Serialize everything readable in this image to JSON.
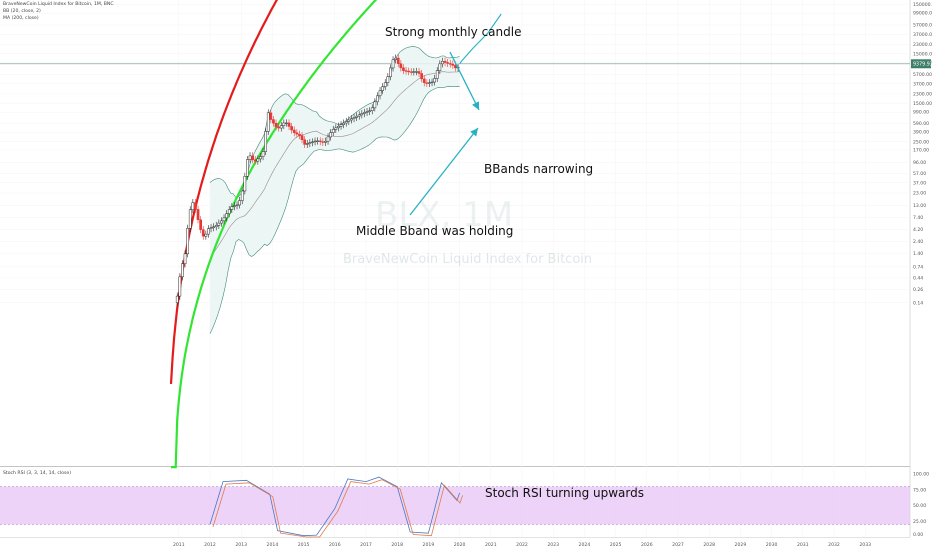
{
  "chart_title": "BraveNewCoin Liquid Index for Bitcoin, 1M, BNC",
  "indicators": {
    "bb": "BB (20, close, 2)",
    "ma": "MA (200, close)",
    "stoch": "Stoch RSI (3, 3, 14, 14, close)"
  },
  "watermark": {
    "symbol": "BLX, 1M",
    "name": "BraveNewCoin Liquid Index for Bitcoin"
  },
  "annotations": {
    "strong_candle": "Strong monthly candle",
    "bbands": "BBands narrowing",
    "middle": "Middle Bband was holding",
    "stoch": "Stoch RSI turning upwards"
  },
  "price_label": "9379.93",
  "colors": {
    "upper_curve": "#e31b1b",
    "lower_curve": "#33e533",
    "arrows": "#27b2c4",
    "up_candle": "#2c2c2c",
    "down_candle": "#e53935",
    "stoch_band": "#e7c4f6"
  },
  "chart_data": [
    {
      "type": "line",
      "title": "",
      "xlabel": "",
      "ylabel": "",
      "scale": "log",
      "x_ticks": [
        "2011",
        "2012",
        "2013",
        "2014",
        "2015",
        "2016",
        "2017",
        "2018",
        "2019",
        "2020",
        "2021",
        "2022",
        "2023",
        "2024",
        "2025",
        "2026",
        "2027",
        "2028",
        "2029",
        "2030",
        "2031",
        "2032",
        "2033"
      ],
      "y_ticks": [
        "0.14",
        "0.26",
        "0.44",
        "0.74",
        "1.40",
        "2.40",
        "4.20",
        "7.40",
        "13.00",
        "23.00",
        "37.00",
        "57.00",
        "96.00",
        "170.00",
        "250.00",
        "390.00",
        "590.00",
        "990.00",
        "1500.00",
        "2300.00",
        "3700.00",
        "5700.00",
        "9900.00",
        "15000.00",
        "23000.00",
        "37000.00",
        "57000.00",
        "99000.00",
        "150000.00",
        "180000.00"
      ],
      "series": [
        {
          "points": [
            [
              "2010-12",
              0.14
            ],
            [
              "2011-01",
              0.3
            ],
            [
              "2011-02",
              0.9
            ],
            [
              "2011-03",
              0.8
            ],
            [
              "2011-04",
              3.0
            ],
            [
              "2011-05",
              8.0
            ],
            [
              "2011-06",
              16.0
            ],
            [
              "2011-07",
              13.0
            ],
            [
              "2011-08",
              8.0
            ],
            [
              "2011-09",
              5.0
            ],
            [
              "2011-10",
              3.2
            ],
            [
              "2011-11",
              2.9
            ],
            [
              "2011-12",
              4.3
            ],
            [
              "2012-03",
              4.9
            ],
            [
              "2012-06",
              6.7
            ],
            [
              "2012-09",
              12.0
            ],
            [
              "2012-12",
              13.5
            ],
            [
              "2013-02",
              33.0
            ],
            [
              "2013-03",
              93.0
            ],
            [
              "2013-04",
              139.0
            ],
            [
              "2013-06",
              97.0
            ],
            [
              "2013-09",
              133.0
            ],
            [
              "2013-10",
              204.0
            ],
            [
              "2013-11",
              1130.0
            ],
            [
              "2013-12",
              750.0
            ],
            [
              "2014-03",
              450.0
            ],
            [
              "2014-06",
              640.0
            ],
            [
              "2014-09",
              390.0
            ],
            [
              "2014-12",
              320.0
            ],
            [
              "2015-01",
              217.0
            ],
            [
              "2015-06",
              264.0
            ],
            [
              "2015-09",
              236.0
            ],
            [
              "2015-12",
              430.0
            ],
            [
              "2016-06",
              670.0
            ],
            [
              "2016-12",
              960.0
            ],
            [
              "2017-03",
              1080.0
            ],
            [
              "2017-06",
              2500.0
            ],
            [
              "2017-09",
              4360.0
            ],
            [
              "2017-11",
              9900.0
            ],
            [
              "2017-12",
              13800.0
            ],
            [
              "2018-01",
              10200.0
            ],
            [
              "2018-03",
              6900.0
            ],
            [
              "2018-06",
              6400.0
            ],
            [
              "2018-09",
              6600.0
            ],
            [
              "2018-11",
              4000.0
            ],
            [
              "2018-12",
              3700.0
            ],
            [
              "2019-03",
              4100.0
            ],
            [
              "2019-05",
              8500.0
            ],
            [
              "2019-06",
              10800.0
            ],
            [
              "2019-08",
              9600.0
            ],
            [
              "2019-10",
              9150.0
            ],
            [
              "2019-12",
              7200.0
            ],
            [
              "2020-01",
              9380.0
            ]
          ]
        },
        {
          "projected": true,
          "points": [
            [
              "2020-01",
              9380.0
            ],
            [
              "2020-02",
              11000.0
            ],
            [
              "2020-06",
              19000.0
            ],
            [
              "2020-12",
              40000.0
            ],
            [
              "2021-05",
              95000.0
            ]
          ]
        }
      ],
      "annotation_note": "Two curved trend lines (upper red, lower green) span 2011–2033; BB (20, close, 2) and MA (200, close) overlays."
    },
    {
      "type": "line",
      "title": "",
      "ylabel": "",
      "y_ticks": [
        "100.00",
        "75.00",
        "50.00",
        "25.00",
        "0.00"
      ],
      "upper_band": 80,
      "lower_band": 20,
      "series": [
        {
          "points": [
            [
              "2012-01",
              20
            ],
            [
              "2012-06",
              88
            ],
            [
              "2013-03",
              90
            ],
            [
              "2013-12",
              68
            ],
            [
              "2014-03",
              10
            ],
            [
              "2015-01",
              2
            ],
            [
              "2015-06",
              3
            ],
            [
              "2016-01",
              45
            ],
            [
              "2016-06",
              92
            ],
            [
              "2017-01",
              88
            ],
            [
              "2017-06",
              95
            ],
            [
              "2018-01",
              80
            ],
            [
              "2018-06",
              8
            ],
            [
              "2019-01",
              6
            ],
            [
              "2019-06",
              86
            ],
            [
              "2019-09",
              72
            ],
            [
              "2019-12",
              58
            ],
            [
              "2020-01",
              70
            ]
          ]
        }
      ]
    }
  ]
}
